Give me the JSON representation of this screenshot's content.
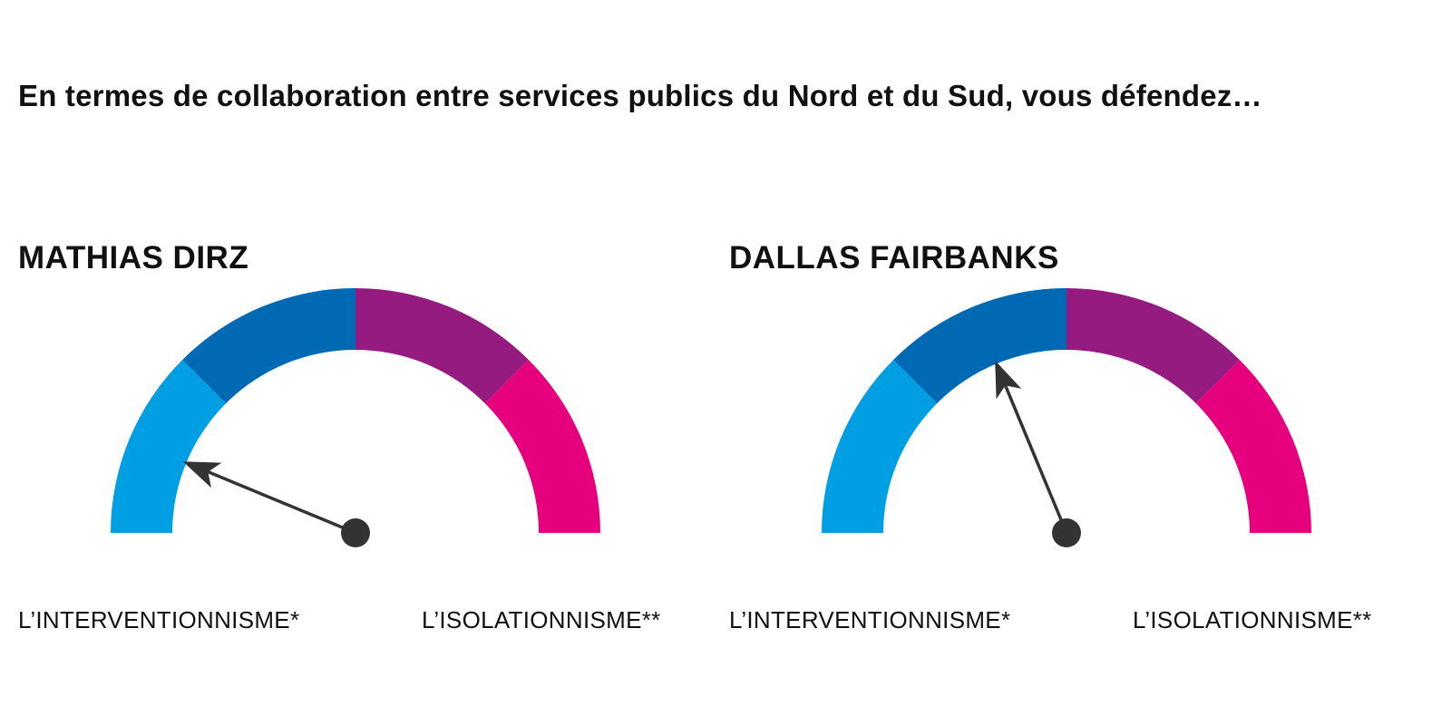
{
  "question": "En termes de collaboration entre services publics du Nord et du Sud, vous défendez…",
  "colors": {
    "segment_1": "#009fe3",
    "segment_2": "#0069b4",
    "segment_3": "#951b81",
    "segment_4": "#e6007e",
    "needle": "#333333"
  },
  "chart_data": [
    {
      "type": "gauge",
      "title": "MATHIAS DIRZ",
      "scale_min_label": "L’INTERVENTIONNISME*",
      "scale_max_label": "L’ISOLATIONNISME**",
      "range": [
        0,
        1
      ],
      "segments": [
        {
          "from": 0,
          "to": 0.25,
          "color": "#009fe3"
        },
        {
          "from": 0.25,
          "to": 0.5,
          "color": "#0069b4"
        },
        {
          "from": 0.5,
          "to": 0.75,
          "color": "#951b81"
        },
        {
          "from": 0.75,
          "to": 1,
          "color": "#e6007e"
        }
      ],
      "value": 0.125
    },
    {
      "type": "gauge",
      "title": "DALLAS FAIRBANKS",
      "scale_min_label": "L’INTERVENTIONNISME*",
      "scale_max_label": "L’ISOLATIONNISME**",
      "range": [
        0,
        1
      ],
      "segments": [
        {
          "from": 0,
          "to": 0.25,
          "color": "#009fe3"
        },
        {
          "from": 0.25,
          "to": 0.5,
          "color": "#0069b4"
        },
        {
          "from": 0.5,
          "to": 0.75,
          "color": "#951b81"
        },
        {
          "from": 0.75,
          "to": 1,
          "color": "#e6007e"
        }
      ],
      "value": 0.375
    }
  ]
}
